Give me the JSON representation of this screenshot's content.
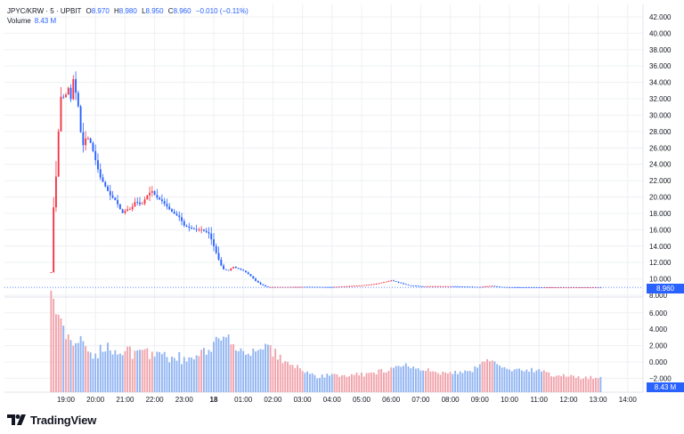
{
  "header": {
    "symbol": "JPYC/KRW · 5 · UPBIT",
    "open_label": "O",
    "open": "8.970",
    "high_label": "H",
    "high": "8.980",
    "low_label": "L",
    "low": "8.950",
    "close_label": "C",
    "close": "8.960",
    "change": "−0.010 (−0.11%)",
    "volume_label": "Volume",
    "volume": "8.43 M"
  },
  "price_tag": "8.960",
  "volume_tag": "8.43 M",
  "brand": "TradingView",
  "colors": {
    "up": "#2962ff",
    "down": "#f23645",
    "vol_up": "#90b4f2",
    "vol_down": "#f0a3ab",
    "grid": "#eef0f3",
    "text": "#131722",
    "accent": "#2962ff"
  },
  "chart_data": {
    "type": "candlestick",
    "price_axis": {
      "min": 8.0,
      "max": 42.0,
      "ticks": [
        "42.000",
        "40.000",
        "38.000",
        "36.000",
        "34.000",
        "32.000",
        "30.000",
        "28.000",
        "26.000",
        "24.000",
        "22.000",
        "20.000",
        "18.000",
        "16.000",
        "14.000",
        "12.000",
        "10.000",
        "8.000"
      ],
      "tick_values": [
        42,
        40,
        38,
        36,
        34,
        32,
        30,
        28,
        26,
        24,
        22,
        20,
        18,
        16,
        14,
        12,
        10,
        8
      ]
    },
    "volume_axis": {
      "ticks": [
        "6.000",
        "4.000",
        "2.000",
        "0.000",
        "−2.000"
      ],
      "tick_values": [
        6,
        4,
        2,
        0,
        -2
      ]
    },
    "time_axis": {
      "labels": [
        "19:00",
        "20:00",
        "21:00",
        "22:00",
        "23:00",
        "18",
        "01:00",
        "02:00",
        "03:00",
        "04:00",
        "05:00",
        "06:00",
        "07:00",
        "08:00",
        "09:00",
        "10:00",
        "11:00",
        "12:00",
        "13:00",
        "14:00"
      ],
      "hours": [
        19,
        20,
        21,
        22,
        23,
        24,
        25,
        26,
        27,
        28,
        29,
        30,
        31,
        32,
        33,
        34,
        35,
        36,
        37,
        38
      ]
    },
    "start_hour": 18.5,
    "bar_minutes": 5,
    "series": [
      {
        "name": "Price",
        "close_path": [
          [
            18.5,
            10.8
          ],
          [
            18.55,
            18.5
          ],
          [
            18.62,
            19.0
          ],
          [
            18.7,
            25.0
          ],
          [
            18.8,
            31.0
          ],
          [
            18.88,
            34.0
          ],
          [
            18.95,
            30.5
          ],
          [
            19.05,
            34.5
          ],
          [
            19.15,
            31.0
          ],
          [
            19.22,
            35.0
          ],
          [
            19.32,
            33.0
          ],
          [
            19.42,
            31.0
          ],
          [
            19.55,
            26.0
          ],
          [
            19.7,
            27.5
          ],
          [
            19.85,
            26.5
          ],
          [
            20.0,
            24.5
          ],
          [
            20.15,
            22.5
          ],
          [
            20.3,
            21.5
          ],
          [
            20.5,
            20.2
          ],
          [
            20.7,
            19.5
          ],
          [
            20.9,
            18.0
          ],
          [
            21.05,
            18.5
          ],
          [
            21.2,
            18.5
          ],
          [
            21.35,
            19.5
          ],
          [
            21.55,
            19.0
          ],
          [
            21.75,
            20.2
          ],
          [
            21.9,
            20.8
          ],
          [
            22.05,
            20.0
          ],
          [
            22.25,
            19.5
          ],
          [
            22.5,
            18.5
          ],
          [
            22.65,
            18.0
          ],
          [
            22.85,
            17.5
          ],
          [
            23.0,
            16.5
          ],
          [
            23.2,
            16.2
          ],
          [
            23.4,
            16.0
          ],
          [
            23.6,
            16.0
          ],
          [
            23.85,
            15.5
          ],
          [
            24.0,
            14.0
          ],
          [
            24.15,
            12.5
          ],
          [
            24.3,
            11.2
          ],
          [
            24.5,
            11.0
          ],
          [
            24.65,
            11.5
          ],
          [
            24.85,
            11.2
          ],
          [
            25.0,
            11.0
          ],
          [
            25.2,
            10.5
          ],
          [
            25.4,
            9.8
          ],
          [
            25.6,
            9.3
          ],
          [
            25.8,
            9.0
          ],
          [
            26.2,
            9.0
          ],
          [
            27.0,
            9.02
          ],
          [
            28.0,
            9.0
          ],
          [
            29.0,
            9.2
          ],
          [
            29.5,
            9.4
          ],
          [
            30.0,
            9.8
          ],
          [
            30.3,
            9.5
          ],
          [
            30.6,
            9.2
          ],
          [
            31.0,
            9.1
          ],
          [
            32.0,
            9.1
          ],
          [
            33.0,
            9.0
          ],
          [
            33.4,
            9.15
          ],
          [
            33.7,
            9.0
          ],
          [
            34.0,
            8.98
          ],
          [
            35.0,
            8.96
          ],
          [
            36.0,
            8.96
          ],
          [
            37.0,
            8.97
          ],
          [
            37.1,
            8.96
          ]
        ]
      },
      {
        "name": "Volume",
        "profile": [
          [
            18.5,
            8.2
          ],
          [
            18.6,
            6.5
          ],
          [
            18.8,
            5.0
          ],
          [
            19.0,
            3.0
          ],
          [
            19.3,
            2.0
          ],
          [
            19.5,
            3.5
          ],
          [
            19.7,
            1.0
          ],
          [
            20.0,
            1.0
          ],
          [
            20.5,
            1.5
          ],
          [
            21.0,
            1.2
          ],
          [
            21.5,
            0.8
          ],
          [
            22.0,
            1.0
          ],
          [
            22.5,
            0.5
          ],
          [
            23.0,
            0.3
          ],
          [
            23.5,
            0.6
          ],
          [
            24.0,
            2.0
          ],
          [
            24.4,
            3.5
          ],
          [
            24.7,
            1.0
          ],
          [
            25.0,
            0.6
          ],
          [
            25.5,
            1.0
          ],
          [
            25.8,
            2.0
          ],
          [
            26.0,
            1.2
          ],
          [
            26.4,
            0.0
          ],
          [
            27.5,
            -1.8
          ],
          [
            29.0,
            -1.6
          ],
          [
            30.0,
            -1.0
          ],
          [
            30.5,
            -0.5
          ],
          [
            31.0,
            -1.0
          ],
          [
            32.0,
            -1.5
          ],
          [
            32.8,
            -1.0
          ],
          [
            33.1,
            0.0
          ],
          [
            33.4,
            0.5
          ],
          [
            33.7,
            -0.5
          ],
          [
            34.0,
            -1.2
          ],
          [
            35.0,
            -1.0
          ],
          [
            35.5,
            -1.8
          ],
          [
            37.1,
            -2.0
          ]
        ]
      }
    ],
    "last_price": 8.96,
    "last_volume": 8.43,
    "grid": true
  }
}
